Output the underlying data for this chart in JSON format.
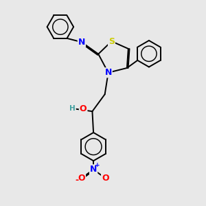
{
  "background_color": "#e8e8e8",
  "bond_color": "#000000",
  "atom_colors": {
    "S": "#cccc00",
    "N": "#0000ff",
    "O": "#ff0000",
    "H": "#40a0a0",
    "C": "#000000"
  },
  "figsize": [
    3.0,
    3.0
  ],
  "dpi": 100,
  "lw": 1.4,
  "fs": 8.5
}
